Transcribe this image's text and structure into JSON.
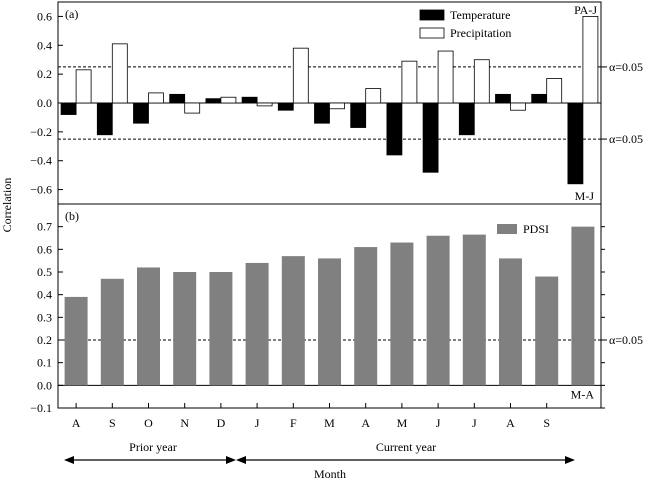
{
  "chart_data": [
    {
      "panel_label": "(a)",
      "type": "bar",
      "categories": [
        "A",
        "S",
        "O",
        "N",
        "D",
        "J",
        "F",
        "M",
        "A",
        "M",
        "J",
        "J",
        "A",
        "S",
        "PA-J"
      ],
      "ylim": [
        -0.7,
        0.7
      ],
      "yticks": [
        -0.6,
        -0.4,
        -0.2,
        0.0,
        0.2,
        0.4,
        0.6
      ],
      "grid": false,
      "legend_position": "top-right",
      "series": [
        {
          "name": "Temperature",
          "color": "#000000",
          "values": [
            -0.08,
            -0.22,
            -0.14,
            0.06,
            0.03,
            0.04,
            -0.05,
            -0.14,
            -0.17,
            -0.36,
            -0.48,
            -0.22,
            0.06,
            0.06,
            -0.56
          ]
        },
        {
          "name": "Precipitation",
          "color": "#ffffff",
          "values": [
            0.23,
            0.41,
            0.07,
            -0.07,
            0.04,
            -0.02,
            0.38,
            -0.04,
            0.1,
            0.29,
            0.36,
            0.3,
            -0.05,
            0.17,
            0.6
          ]
        }
      ],
      "significance_lines": [
        {
          "value": 0.25,
          "label": "α=0.05"
        },
        {
          "value": -0.25,
          "label": "α=0.05"
        }
      ],
      "annotations": [
        "PA-J",
        "M-J"
      ]
    },
    {
      "panel_label": "(b)",
      "type": "bar",
      "categories": [
        "A",
        "S",
        "O",
        "N",
        "D",
        "J",
        "F",
        "M",
        "A",
        "M",
        "J",
        "J",
        "A",
        "S",
        "M-A"
      ],
      "ylim": [
        -0.1,
        0.8
      ],
      "yticks": [
        -0.1,
        0.0,
        0.1,
        0.2,
        0.3,
        0.4,
        0.5,
        0.6,
        0.7
      ],
      "grid": false,
      "legend_position": "top-right",
      "series": [
        {
          "name": "PDSI",
          "color": "#808080",
          "values": [
            0.39,
            0.47,
            0.52,
            0.5,
            0.5,
            0.54,
            0.57,
            0.56,
            0.61,
            0.63,
            0.66,
            0.665,
            0.56,
            0.48,
            0.7
          ]
        }
      ],
      "significance_lines": [
        {
          "value": 0.2,
          "label": "α=0.05"
        }
      ],
      "annotations": [
        "M-A"
      ]
    }
  ],
  "shared": {
    "ylabel": "Correlation",
    "xlabel": "Month",
    "x_tick_labels": [
      "A",
      "S",
      "O",
      "N",
      "D",
      "J",
      "F",
      "M",
      "A",
      "M",
      "J",
      "J",
      "A",
      "S"
    ],
    "group_labels": [
      "Prior year",
      "Current year"
    ]
  }
}
